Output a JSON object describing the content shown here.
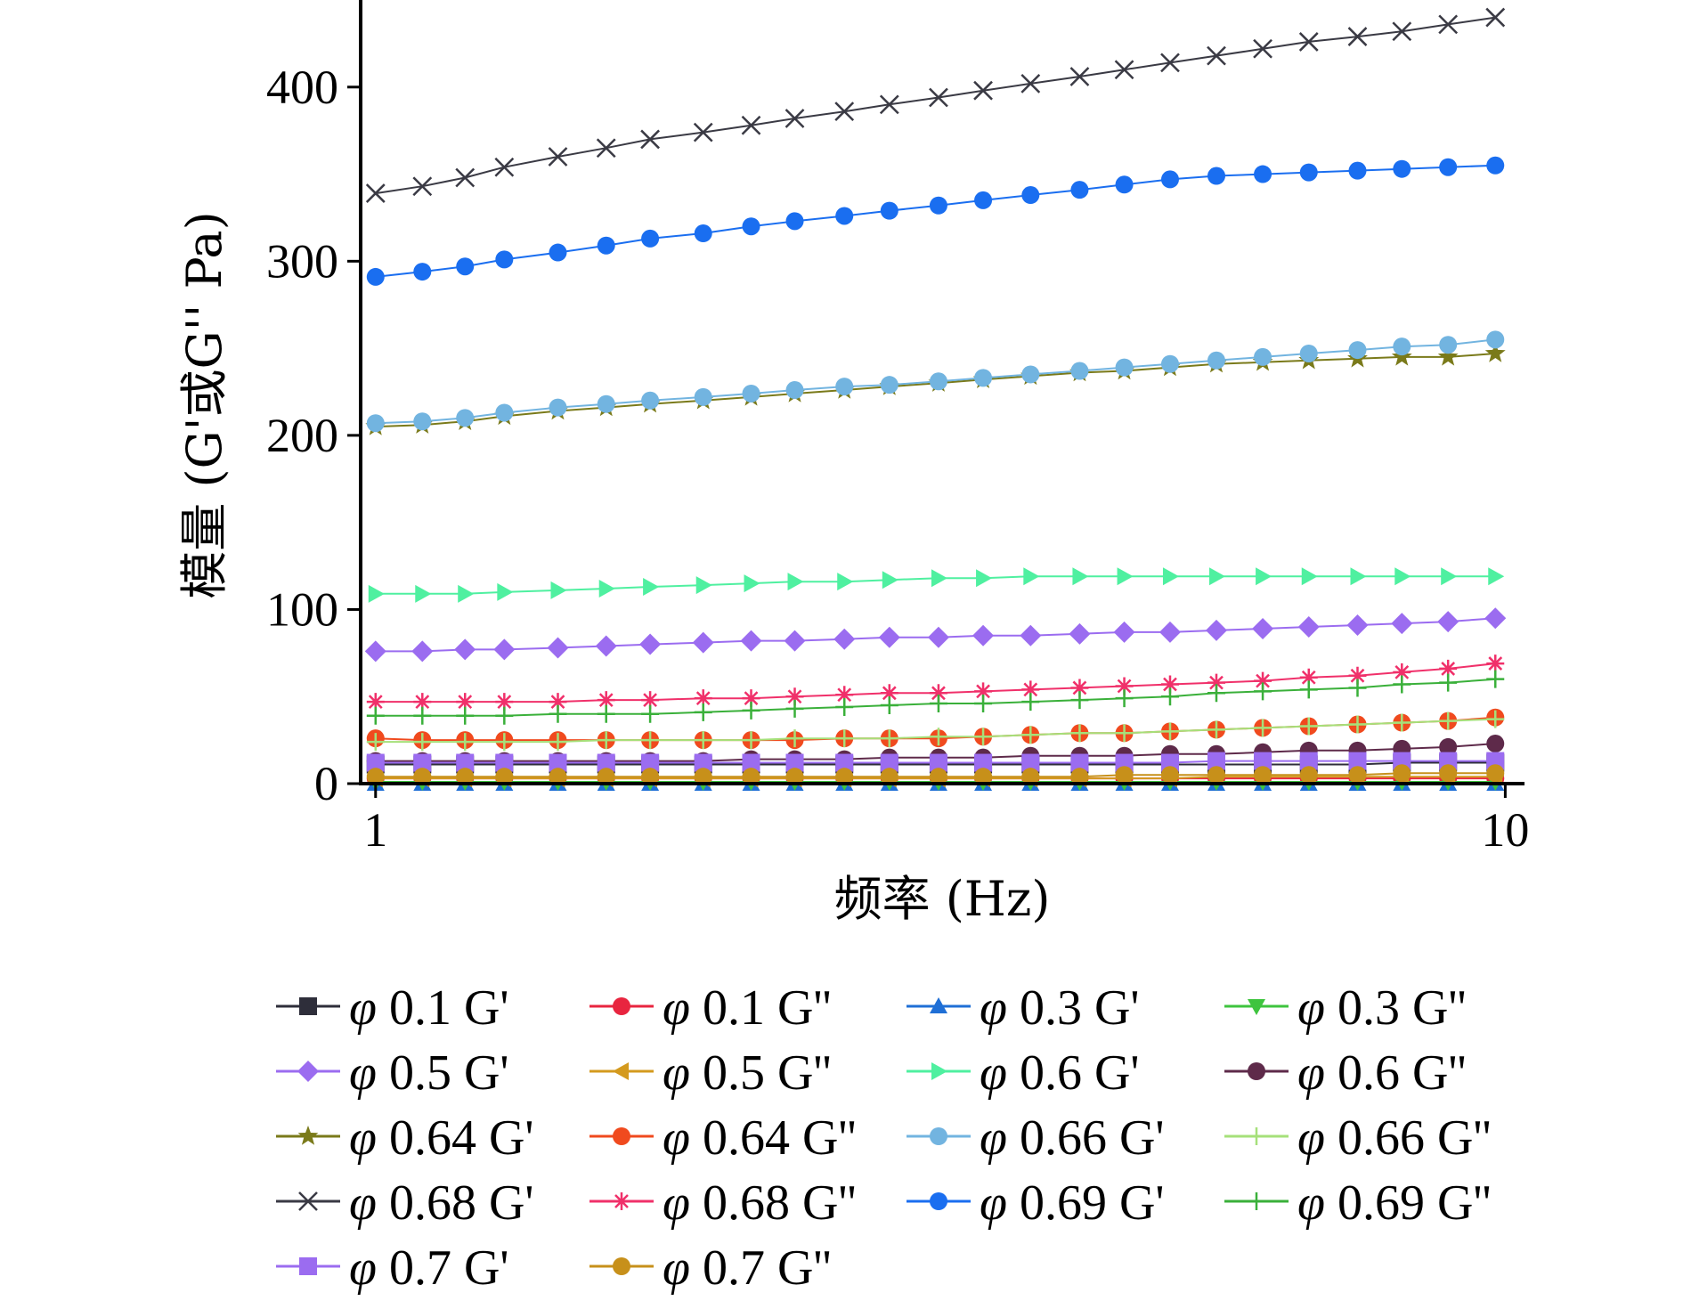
{
  "chart_data": {
    "type": "line",
    "xscale": "log",
    "xlim": [
      0.97,
      10.4
    ],
    "ylim": [
      0,
      450
    ],
    "xticks": [
      1,
      10
    ],
    "xtick_labels": [
      "1",
      "10"
    ],
    "yticks": [
      0,
      100,
      200,
      300,
      400
    ],
    "ytick_labels": [
      "0",
      "100",
      "200",
      "300",
      "400"
    ],
    "xlabel": "频率 (Hz)",
    "ylabel": "模量 (G'或G'' Pa)",
    "grid": false,
    "legend_position": "bottom",
    "legend_columns": 4,
    "x": [
      1.0,
      1.1,
      1.2,
      1.3,
      1.45,
      1.6,
      1.75,
      1.95,
      2.15,
      2.35,
      2.6,
      2.85,
      3.15,
      3.45,
      3.8,
      4.2,
      4.6,
      5.05,
      5.55,
      6.1,
      6.7,
      7.4,
      8.1,
      8.9,
      9.8
    ],
    "series": [
      {
        "name": "φ 0.1 G'",
        "label_sym": "φ",
        "label_rest": " 0.1 G'",
        "color": "#2e2e3a",
        "marker": "square",
        "values": [
          11,
          11,
          11,
          11,
          11,
          11,
          11,
          11,
          11,
          11,
          11,
          11,
          11,
          11,
          11,
          11,
          11,
          11,
          11,
          11,
          11,
          11,
          12,
          12,
          12
        ]
      },
      {
        "name": "φ 0.1 G''",
        "label_sym": "φ",
        "label_rest": " 0.1 G''",
        "color": "#e8253f",
        "marker": "circle",
        "values": [
          3,
          3,
          3,
          3,
          3,
          3,
          3,
          3,
          3,
          3,
          3,
          3,
          3,
          3,
          3,
          3,
          3,
          3,
          3,
          3,
          3,
          3,
          3,
          3,
          3
        ]
      },
      {
        "name": "φ 0.3 G'",
        "label_sym": "φ",
        "label_rest": " 0.3 G'",
        "color": "#1f6fd6",
        "marker": "triangle-up",
        "values": [
          0,
          0,
          0,
          0,
          0,
          0,
          0,
          0,
          0,
          0,
          0,
          0,
          0,
          0,
          0,
          0,
          0,
          0,
          0,
          0,
          0,
          0,
          0,
          0,
          0
        ]
      },
      {
        "name": "φ 0.3 G''",
        "label_sym": "φ",
        "label_rest": " 0.3 G''",
        "color": "#3ec43e",
        "marker": "triangle-down",
        "values": [
          1,
          1,
          1,
          1,
          1,
          1,
          1,
          1,
          1,
          1,
          1,
          1,
          1,
          1,
          1,
          1,
          1,
          1,
          1,
          1,
          1,
          1,
          1,
          1,
          1
        ]
      },
      {
        "name": "φ 0.5 G'",
        "label_sym": "φ",
        "label_rest": " 0.5 G'",
        "color": "#9b6cf0",
        "marker": "diamond",
        "values": [
          76,
          76,
          77,
          77,
          78,
          79,
          80,
          81,
          82,
          82,
          83,
          84,
          84,
          85,
          85,
          86,
          87,
          87,
          88,
          89,
          90,
          91,
          92,
          93,
          95
        ]
      },
      {
        "name": "φ 0.5 G''",
        "label_sym": "φ",
        "label_rest": " 0.5 G''",
        "color": "#d49a1e",
        "marker": "triangle-left",
        "values": [
          3,
          3,
          3,
          3,
          3,
          3,
          3,
          3,
          3,
          3,
          3,
          3,
          3,
          3,
          3,
          3,
          3,
          3,
          4,
          4,
          4,
          4,
          4,
          4,
          4
        ]
      },
      {
        "name": "φ 0.6 G'",
        "label_sym": "φ",
        "label_rest": " 0.6 G'",
        "color": "#4ff0a0",
        "marker": "triangle-right",
        "values": [
          109,
          109,
          109,
          110,
          111,
          112,
          113,
          114,
          115,
          116,
          116,
          117,
          118,
          118,
          119,
          119,
          119,
          119,
          119,
          119,
          119,
          119,
          119,
          119,
          119
        ]
      },
      {
        "name": "φ 0.6 G''",
        "label_sym": "φ",
        "label_rest": " 0.6 G''",
        "color": "#5e2a4a",
        "marker": "circle",
        "values": [
          13,
          13,
          13,
          13,
          13,
          13,
          13,
          13,
          14,
          14,
          14,
          15,
          15,
          15,
          16,
          16,
          16,
          17,
          17,
          18,
          19,
          19,
          20,
          21,
          23
        ]
      },
      {
        "name": "φ 0.64 G'",
        "label_sym": "φ",
        "label_rest": " 0.64 G'",
        "color": "#7a7a1a",
        "marker": "star",
        "values": [
          205,
          206,
          208,
          211,
          214,
          216,
          218,
          220,
          222,
          224,
          226,
          228,
          230,
          232,
          234,
          236,
          237,
          239,
          241,
          242,
          243,
          244,
          245,
          245,
          247
        ]
      },
      {
        "name": "φ 0.64 G''",
        "label_sym": "φ",
        "label_rest": " 0.64 G''",
        "color": "#f04a1e",
        "marker": "circle",
        "values": [
          26,
          25,
          25,
          25,
          25,
          25,
          25,
          25,
          25,
          25,
          26,
          26,
          26,
          27,
          28,
          29,
          29,
          30,
          31,
          32,
          33,
          34,
          35,
          36,
          38
        ]
      },
      {
        "name": "φ 0.66 G'",
        "label_sym": "φ",
        "label_rest": " 0.66 G'",
        "color": "#72b4e0",
        "marker": "circle",
        "values": [
          207,
          208,
          210,
          213,
          216,
          218,
          220,
          222,
          224,
          226,
          228,
          229,
          231,
          233,
          235,
          237,
          239,
          241,
          243,
          245,
          247,
          249,
          251,
          252,
          255
        ]
      },
      {
        "name": "φ 0.66 G''",
        "label_sym": "φ",
        "label_rest": " 0.66 G''",
        "color": "#a6e07a",
        "marker": "plus",
        "values": [
          24,
          24,
          24,
          24,
          24,
          25,
          25,
          25,
          25,
          26,
          26,
          26,
          27,
          27,
          28,
          29,
          29,
          30,
          31,
          32,
          33,
          34,
          35,
          36,
          37
        ]
      },
      {
        "name": "φ 0.68 G'",
        "label_sym": "φ",
        "label_rest": " 0.68 G'",
        "color": "#3a3a44",
        "marker": "x",
        "values": [
          339,
          343,
          348,
          354,
          360,
          365,
          370,
          374,
          378,
          382,
          386,
          390,
          394,
          398,
          402,
          406,
          410,
          414,
          418,
          422,
          426,
          429,
          432,
          436,
          440
        ]
      },
      {
        "name": "φ 0.68 G''",
        "label_sym": "φ",
        "label_rest": " 0.68 G''",
        "color": "#f0306a",
        "marker": "asterisk",
        "values": [
          47,
          47,
          47,
          47,
          47,
          48,
          48,
          49,
          49,
          50,
          51,
          52,
          52,
          53,
          54,
          55,
          56,
          57,
          58,
          59,
          61,
          62,
          64,
          66,
          69
        ]
      },
      {
        "name": "φ 0.69 G'",
        "label_sym": "φ",
        "label_rest": " 0.69 G'",
        "color": "#1a6ef0",
        "marker": "circle",
        "values": [
          291,
          294,
          297,
          301,
          305,
          309,
          313,
          316,
          320,
          323,
          326,
          329,
          332,
          335,
          338,
          341,
          344,
          347,
          349,
          350,
          351,
          352,
          353,
          354,
          355
        ]
      },
      {
        "name": "φ 0.69 G''",
        "label_sym": "φ",
        "label_rest": " 0.69 G''",
        "color": "#3ab03a",
        "marker": "plus",
        "values": [
          39,
          39,
          39,
          39,
          40,
          40,
          40,
          41,
          42,
          43,
          44,
          45,
          46,
          46,
          47,
          48,
          49,
          50,
          52,
          53,
          54,
          55,
          57,
          58,
          60
        ]
      },
      {
        "name": "φ 0.7 G'",
        "label_sym": "φ",
        "label_rest": " 0.7 G'",
        "color": "#9b6cf0",
        "marker": "square",
        "values": [
          12,
          12,
          12,
          12,
          12,
          12,
          12,
          12,
          12,
          12,
          12,
          12,
          12,
          12,
          12,
          12,
          12,
          12,
          13,
          13,
          13,
          13,
          13,
          13,
          13
        ]
      },
      {
        "name": "φ 0.7 G''",
        "label_sym": "φ",
        "label_rest": " 0.7 G''",
        "color": "#c7901a",
        "marker": "circle",
        "values": [
          4,
          4,
          4,
          4,
          4,
          4,
          4,
          4,
          4,
          4,
          4,
          4,
          4,
          4,
          4,
          4,
          5,
          5,
          5,
          5,
          5,
          5,
          6,
          6,
          6
        ]
      }
    ]
  }
}
